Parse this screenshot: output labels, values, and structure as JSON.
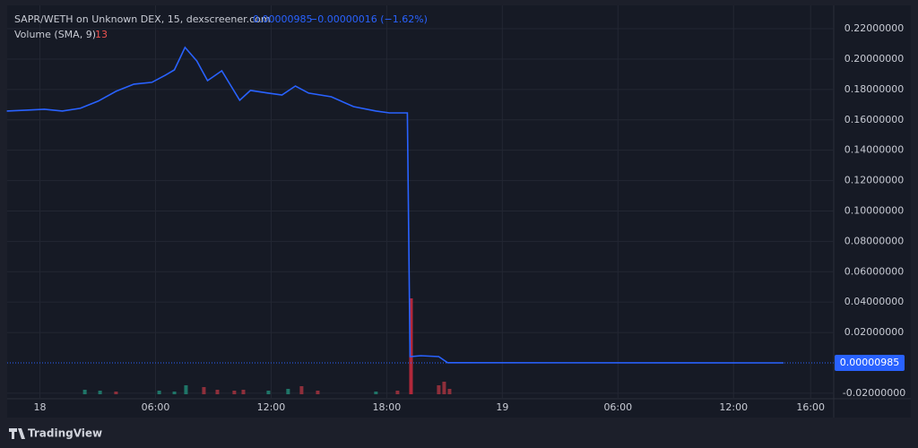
{
  "chart_data": {
    "type": "line",
    "title": "SAPR/WETH on Unknown DEX, 15, dexscreener.com",
    "last_price": "0.00000985",
    "change": "−0.00000016 (−1.62%)",
    "volume_title": "Volume (SMA, 9)",
    "volume_sma": 13,
    "brand": "TradingView",
    "color": "#2962ff",
    "grid": true,
    "x": [
      -1.72,
      -0.7,
      0.23,
      1.16,
      2.09,
      3.02,
      3.95,
      4.88,
      5.81,
      6.51,
      6.98,
      7.53,
      8.14,
      8.7,
      9.44,
      10.37,
      10.93,
      11.86,
      12.56,
      13.26,
      13.95,
      15.12,
      16.28,
      17.44,
      18.14,
      19.07,
      19.21,
      19.77,
      20.7,
      21.16,
      38.6
    ],
    "values": [
      0.1658,
      0.1664,
      0.167,
      0.1658,
      0.1676,
      0.1723,
      0.1788,
      0.1835,
      0.1847,
      0.1894,
      0.1929,
      0.2077,
      0.1988,
      0.1858,
      0.1923,
      0.1729,
      0.1794,
      0.1776,
      0.1764,
      0.1823,
      0.1776,
      0.1752,
      0.1687,
      0.1658,
      0.1646,
      0.1646,
      0.0041,
      0.0047,
      0.0041,
      0.0001,
      9.85e-06
    ],
    "xlim": [
      -1.7,
      41.2
    ],
    "ylim": [
      -0.0236,
      0.2389
    ],
    "xticks": [
      {
        "value": 0,
        "label": "18"
      },
      {
        "value": 6,
        "label": "06:00"
      },
      {
        "value": 12,
        "label": "12:00"
      },
      {
        "value": 18,
        "label": "18:00"
      },
      {
        "value": 24,
        "label": "19"
      },
      {
        "value": 30,
        "label": "06:00"
      },
      {
        "value": 36,
        "label": "12:00"
      },
      {
        "value": 40,
        "label": "16:00"
      }
    ],
    "yticks": [
      {
        "value": -0.02,
        "label": "-0.02000000"
      },
      {
        "value": 0.02,
        "label": "0.02000000"
      },
      {
        "value": 0.04,
        "label": "0.04000000"
      },
      {
        "value": 0.06,
        "label": "0.06000000"
      },
      {
        "value": 0.08,
        "label": "0.08000000"
      },
      {
        "value": 0.1,
        "label": "0.10000000"
      },
      {
        "value": 0.12,
        "label": "0.12000000"
      },
      {
        "value": 0.14,
        "label": "0.14000000"
      },
      {
        "value": 0.16,
        "label": "0.16000000"
      },
      {
        "value": 0.18,
        "label": "0.18000000"
      },
      {
        "value": 0.2,
        "label": "0.20000000"
      },
      {
        "value": 0.22,
        "label": "0.22000000"
      }
    ],
    "volume": {
      "x": [
        2.33,
        3.12,
        3.95,
        6.19,
        6.98,
        7.58,
        8.51,
        9.21,
        10.09,
        10.56,
        11.86,
        12.88,
        13.58,
        14.42,
        17.44,
        18.56,
        19.26,
        20.7,
        20.98,
        21.26
      ],
      "values": [
        2.5,
        2,
        1.5,
        2,
        1.5,
        5,
        4,
        2.5,
        2,
        2.5,
        2,
        3,
        4.5,
        2,
        1.5,
        2,
        53.5,
        5,
        7,
        3
      ],
      "colors": [
        "#1f7568",
        "#1f7568",
        "#8e2f3b",
        "#1f7568",
        "#1f7568",
        "#1f7568",
        "#8e2f3b",
        "#8e2f3b",
        "#8e2f3b",
        "#8e2f3b",
        "#1f7568",
        "#1f7568",
        "#8e2f3b",
        "#8e2f3b",
        "#1f7568",
        "#8e2f3b",
        "#b2283a",
        "#8e2f3b",
        "#8e2f3b",
        "#8e2f3b"
      ],
      "ylim": [
        0,
        60
      ]
    }
  }
}
